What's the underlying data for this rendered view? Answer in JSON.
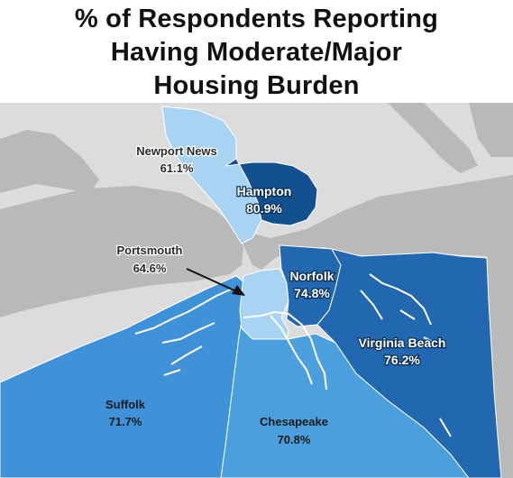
{
  "title": {
    "line1": "% of Respondents Reporting",
    "line2": "Having Moderate/Major",
    "line3": "Housing Burden"
  },
  "colors": {
    "land": "#dcdcdc",
    "water": "#b9b9b9",
    "newport_news": "#a9d3f3",
    "hampton": "#12508f",
    "norfolk": "#2168b0",
    "virginia_beach": "#2168b0",
    "portsmouth": "#a9d3f3",
    "suffolk": "#3f92d8",
    "chesapeake": "#4a9fdc"
  },
  "regions": {
    "newport_news": {
      "name": "Newport News",
      "value": "61.1%"
    },
    "hampton": {
      "name": "Hampton",
      "value": "80.9%"
    },
    "portsmouth": {
      "name": "Portsmouth",
      "value": "64.6%"
    },
    "norfolk": {
      "name": "Norfolk",
      "value": "74.8%"
    },
    "virginia_beach": {
      "name": "Virginia Beach",
      "value": "76.2%"
    },
    "suffolk": {
      "name": "Suffolk",
      "value": "71.7%"
    },
    "chesapeake": {
      "name": "Chesapeake",
      "value": "70.8%"
    }
  }
}
